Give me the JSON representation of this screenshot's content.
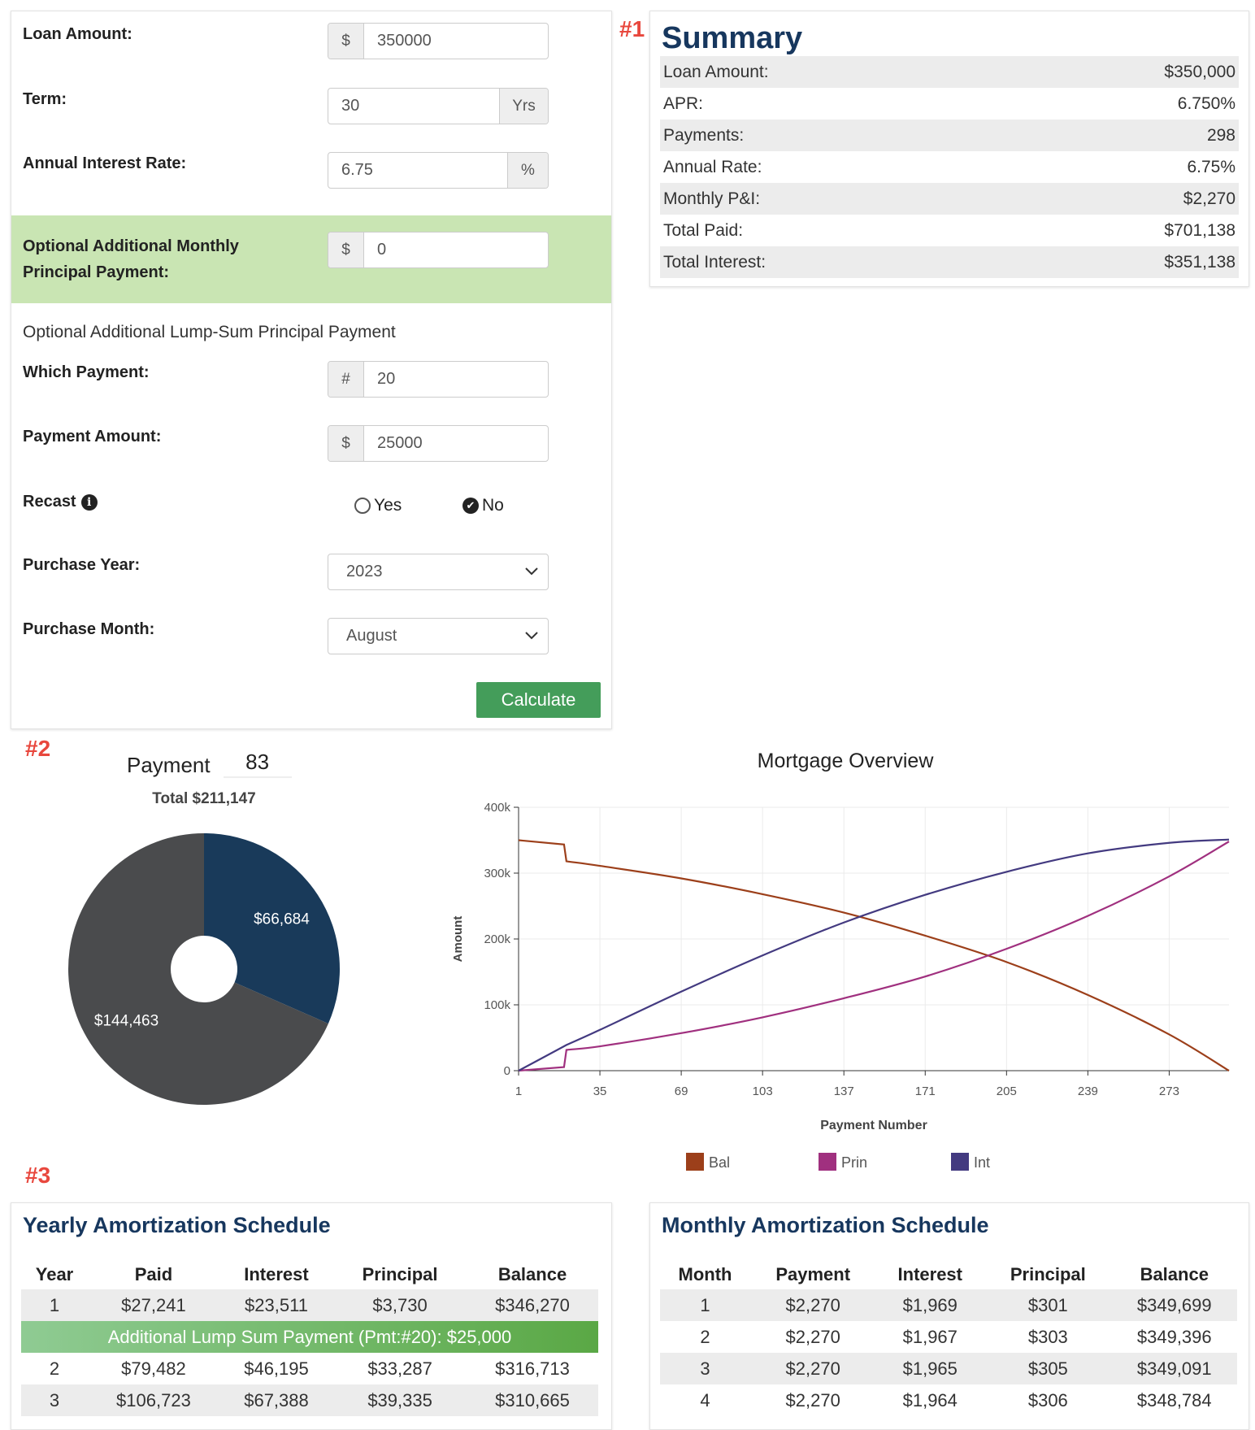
{
  "form": {
    "loan_amount": {
      "label": "Loan Amount:",
      "prefix": "$",
      "value": "350000"
    },
    "term": {
      "label": "Term:",
      "value": "30",
      "suffix": "Yrs"
    },
    "rate": {
      "label": "Annual Interest Rate:",
      "value": "6.75",
      "suffix": "%"
    },
    "extra_monthly": {
      "label_line1": "Optional Additional Monthly",
      "label_line2": "Principal Payment:",
      "prefix": "$",
      "value": "0",
      "highlight_color": "#c9e5b3"
    },
    "lump_heading": "Optional Additional Lump-Sum Principal Payment",
    "which_payment": {
      "label": "Which Payment:",
      "prefix": "#",
      "value": "20"
    },
    "payment_amount": {
      "label": "Payment Amount:",
      "prefix": "$",
      "value": "25000"
    },
    "recast": {
      "label": "Recast",
      "icon": "info-icon",
      "options": [
        "Yes",
        "No"
      ],
      "selected": "No"
    },
    "purchase_year": {
      "label": "Purchase Year:",
      "value": "2023"
    },
    "purchase_month": {
      "label": "Purchase Month:",
      "value": "August"
    },
    "calculate_label": "Calculate",
    "calculate_color": "#449d5a"
  },
  "markers": [
    "#1",
    "#2",
    "#3"
  ],
  "summary": {
    "title": "Summary",
    "rows": [
      {
        "label": "Loan Amount:",
        "value": "$350,000"
      },
      {
        "label": "APR:",
        "value": "6.750%"
      },
      {
        "label": "Payments:",
        "value": "298"
      },
      {
        "label": "Annual Rate:",
        "value": "6.75%"
      },
      {
        "label": "Monthly P&I:",
        "value": "$2,270"
      },
      {
        "label": "Total Paid:",
        "value": "$701,138"
      },
      {
        "label": "Total Interest:",
        "value": "$351,138"
      }
    ]
  },
  "payment_pie": {
    "payment_label": "Payment",
    "payment_value": "83",
    "total": "Total $211,147"
  },
  "chart_data": [
    {
      "type": "pie",
      "donut": true,
      "slices": [
        {
          "value": 66684,
          "label": "$66,684",
          "color": "#193a5a"
        },
        {
          "value": 144463,
          "label": "$144,463",
          "color": "#4a4b4d"
        }
      ]
    },
    {
      "type": "line",
      "title": "Mortgage Overview",
      "xlabel": "Payment Number",
      "ylabel": "Amount",
      "xlim": [
        1,
        298
      ],
      "ylim": [
        0,
        400000
      ],
      "xticks": [
        "1",
        "35",
        "69",
        "103",
        "137",
        "171",
        "205",
        "239",
        "273"
      ],
      "yticks": [
        "0",
        "100k",
        "200k",
        "300k",
        "400k"
      ],
      "grid": true,
      "legend": "bottom",
      "x": [
        1,
        20,
        21,
        35,
        69,
        103,
        137,
        171,
        205,
        239,
        273,
        298
      ],
      "series": [
        {
          "name": "Bal",
          "color": "#9c3f1a",
          "values": [
            350000,
            343500,
            318000,
            311000,
            292000,
            268000,
            240000,
            205000,
            165000,
            115000,
            55000,
            0
          ]
        },
        {
          "name": "Prin",
          "color": "#a0307f",
          "values": [
            0,
            5500,
            31500,
            37000,
            57000,
            81000,
            110000,
            143000,
            185000,
            235000,
            295000,
            348000
          ]
        },
        {
          "name": "Int",
          "color": "#433a80",
          "values": [
            0,
            37000,
            39000,
            62000,
            120000,
            175000,
            225000,
            267000,
            302000,
            330000,
            346000,
            351000
          ]
        }
      ]
    }
  ],
  "yearly": {
    "title": "Yearly Amortization Schedule",
    "columns": [
      "Year",
      "Paid",
      "Interest",
      "Principal",
      "Balance"
    ],
    "rows": [
      [
        "1",
        "$27,241",
        "$23,511",
        "$3,730",
        "$346,270"
      ],
      {
        "lump": "Additional Lump Sum Payment (Pmt:#20): $25,000"
      },
      [
        "2",
        "$79,482",
        "$46,195",
        "$33,287",
        "$316,713"
      ],
      [
        "3",
        "$106,723",
        "$67,388",
        "$39,335",
        "$310,665"
      ]
    ]
  },
  "monthly": {
    "title": "Monthly Amortization Schedule",
    "columns": [
      "Month",
      "Payment",
      "Interest",
      "Principal",
      "Balance"
    ],
    "rows": [
      [
        "1",
        "$2,270",
        "$1,969",
        "$301",
        "$349,699"
      ],
      [
        "2",
        "$2,270",
        "$1,967",
        "$303",
        "$349,396"
      ],
      [
        "3",
        "$2,270",
        "$1,965",
        "$305",
        "$349,091"
      ],
      [
        "4",
        "$2,270",
        "$1,964",
        "$306",
        "$348,784"
      ]
    ]
  }
}
